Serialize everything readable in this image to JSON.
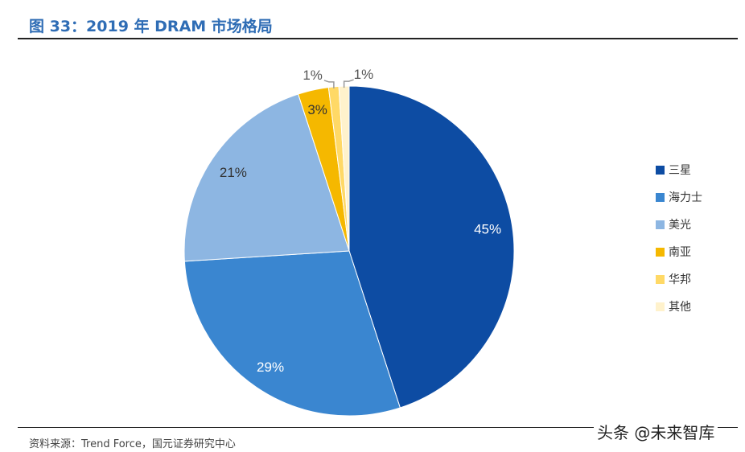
{
  "title": "图 33：2019 年 DRAM 市场格局",
  "source": "资料来源：Trend Force，国元证券研究中心",
  "watermark": "头条 @未来智库",
  "chart_data": {
    "type": "pie",
    "start_angle": "12 o'clock",
    "direction": "clockwise",
    "legend_position": "right",
    "categories": [
      "三星",
      "海力士",
      "美光",
      "南亚",
      "华邦",
      "其他"
    ],
    "values": [
      45,
      29,
      21,
      3,
      1,
      1
    ],
    "labels": [
      "45%",
      "29%",
      "21%",
      "3%",
      "1%",
      "1%"
    ],
    "colors": [
      "#0D4CA3",
      "#3A86D0",
      "#8DB6E2",
      "#F5B800",
      "#FFD966",
      "#FFF2CC"
    ],
    "label_colors": [
      "#ffffff",
      "#ffffff",
      "#333333",
      "#333333",
      "#555555",
      "#555555"
    ]
  }
}
